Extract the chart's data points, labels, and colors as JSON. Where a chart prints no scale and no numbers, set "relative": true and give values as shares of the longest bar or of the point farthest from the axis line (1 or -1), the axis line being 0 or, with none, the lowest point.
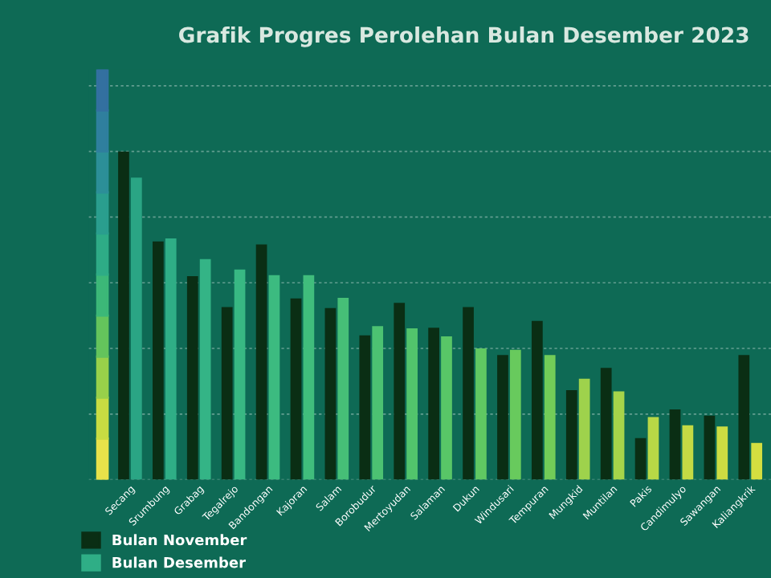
{
  "chart_data": {
    "type": "bar",
    "title": "Grafik Progres Perolehan Bulan Desember 2023",
    "categories": [
      "Secang",
      "Srumbung",
      "Grabag",
      "Tegalrejo",
      "Bandongan",
      "Kajoran",
      "Salam",
      "Borobudur",
      "Mertoyudan",
      "Salaman",
      "Dukun",
      "Windusari",
      "Tempuran",
      "Mungkid",
      "Muntilan",
      "Pakis",
      "Candimulyo",
      "Sawangan",
      "Kaliangkrik"
    ],
    "relative": true,
    "grid": "y",
    "legend": "bottom left",
    "series": [
      {
        "name": "Bulan November",
        "color": "#0a2e14",
        "values": [
          1,
          0.726,
          0.62,
          0.526,
          0.717,
          0.552,
          0.523,
          0.44,
          0.539,
          0.463,
          0.526,
          0.38,
          0.484,
          0.273,
          0.341,
          0.127,
          0.214,
          0.195,
          0.38
        ]
      },
      {
        "name": "Bulan Desember",
        "color": "#2fae86",
        "colors": [
          "#2aa584",
          "#2fae86",
          "#34b486",
          "#38b883",
          "#3cbb80",
          "#40bd7c",
          "#46bf77",
          "#4cc272",
          "#52c46c",
          "#58c667",
          "#60c862",
          "#68ca5d",
          "#72cc58",
          "#9ed24c",
          "#a6d44a",
          "#b8d846",
          "#c4da44",
          "#ccdc42",
          "#d4de40"
        ],
        "values": [
          0.92,
          0.735,
          0.672,
          0.64,
          0.623,
          0.623,
          0.554,
          0.468,
          0.461,
          0.437,
          0.4,
          0.396,
          0.38,
          0.308,
          0.269,
          0.191,
          0.166,
          0.162,
          0.112
        ]
      }
    ]
  }
}
